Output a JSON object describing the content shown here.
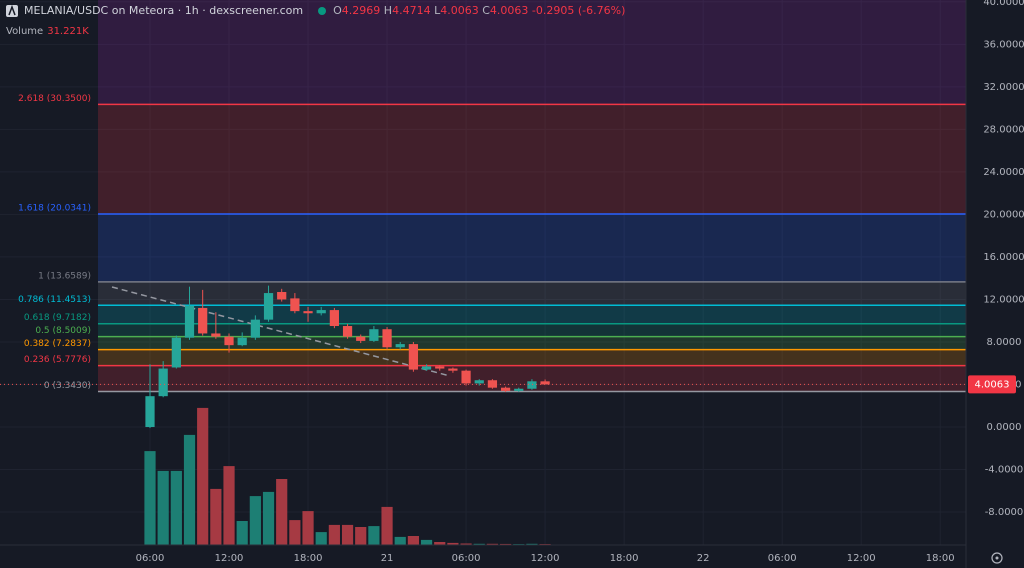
{
  "chart_data": {
    "type": "candlestick",
    "title": "MELANIA/USDC on Meteora · 1h · dexscreener.com",
    "ohlc_letters": [
      "O",
      "H",
      "L",
      "C"
    ],
    "change": -0.2905,
    "change_percent": {
      "value": -6.76,
      "label": "(-6.76%)"
    },
    "x": [
      0,
      1,
      2,
      3,
      4,
      5,
      6,
      7,
      8,
      9,
      10,
      11,
      12,
      13,
      14,
      15,
      16,
      17,
      18,
      19,
      20,
      21,
      22,
      23,
      24,
      25,
      26,
      27,
      28,
      29,
      30
    ],
    "open": [
      0,
      2.9,
      5.6,
      8.4,
      11.2,
      8.8,
      8.5,
      7.7,
      8.4,
      10.1,
      12.7,
      12.1,
      10.9,
      10.7,
      11.0,
      9.5,
      8.5,
      8.1,
      9.2,
      7.5,
      7.8,
      5.4,
      5.7,
      5.5,
      5.3,
      4.1,
      4.4,
      3.7,
      3.4,
      3.6,
      4.2969
    ],
    "high": [
      5.9,
      6.2,
      8.6,
      13.2,
      12.9,
      10.8,
      8.8,
      8.9,
      10.5,
      13.3,
      13.0,
      12.6,
      11.3,
      11.3,
      11.2,
      9.7,
      8.7,
      9.5,
      9.4,
      8.0,
      8.0,
      5.9,
      5.8,
      5.6,
      5.4,
      4.5,
      4.5,
      3.8,
      3.7,
      4.5,
      4.4714
    ],
    "low": [
      -0.1,
      2.8,
      5.5,
      8.2,
      8.6,
      8.3,
      7.0,
      7.6,
      8.2,
      9.9,
      11.8,
      10.7,
      9.9,
      10.5,
      9.3,
      8.3,
      7.9,
      8.0,
      7.3,
      7.3,
      5.2,
      5.3,
      5.3,
      5.1,
      3.9,
      3.9,
      3.6,
      3.3,
      3.3,
      3.5,
      4.0063
    ],
    "close": [
      2.9,
      5.5,
      8.4,
      11.4,
      8.8,
      8.5,
      7.7,
      8.4,
      10.1,
      12.6,
      12.0,
      10.9,
      10.7,
      11.0,
      9.5,
      8.5,
      8.1,
      9.2,
      7.5,
      7.8,
      5.4,
      5.7,
      5.5,
      5.3,
      4.1,
      4.4,
      3.7,
      3.4,
      3.6,
      4.3,
      4.0063
    ],
    "up_color": "#26a69a",
    "down_color": "#ef5350",
    "xlim": [
      -11.39,
      61.96
    ],
    "xticks": [
      {
        "value": 0,
        "label": "06:00"
      },
      {
        "value": 6,
        "label": "12:00"
      },
      {
        "value": 12,
        "label": "18:00"
      },
      {
        "value": 18,
        "label": "21"
      },
      {
        "value": 24,
        "label": "06:00"
      },
      {
        "value": 30,
        "label": "12:00"
      },
      {
        "value": 36,
        "label": "18:00"
      },
      {
        "value": 42,
        "label": "22"
      },
      {
        "value": 48,
        "label": "06:00"
      },
      {
        "value": 54,
        "label": "12:00"
      },
      {
        "value": 60,
        "label": "18:00"
      }
    ],
    "ylim": [
      -11.1,
      40.17
    ],
    "yticks": [
      {
        "value": 40,
        "label": "40.0000"
      },
      {
        "value": 36,
        "label": "36.0000"
      },
      {
        "value": 32,
        "label": "32.0000"
      },
      {
        "value": 28,
        "label": "28.0000"
      },
      {
        "value": 24,
        "label": "24.0000"
      },
      {
        "value": 20,
        "label": "20.0000"
      },
      {
        "value": 16,
        "label": "16.0000"
      },
      {
        "value": 12,
        "label": "12.0000"
      },
      {
        "value": 8,
        "label": "8.0000"
      },
      {
        "value": 4,
        "label": "4.0000"
      },
      {
        "value": 0,
        "label": "0.0000"
      },
      {
        "value": -4,
        "label": "-4.0000"
      },
      {
        "value": -8,
        "label": "-8.0000"
      }
    ],
    "fib_levels": [
      {
        "label": "0 (3.3430)",
        "value": 3.343,
        "color": "#9598a1"
      },
      {
        "label": "0.236 (5.7776)",
        "value": 5.7776,
        "color": "#f23645"
      },
      {
        "label": "0.382 (7.2837)",
        "value": 7.2837,
        "color": "#ff9800"
      },
      {
        "label": "0.5 (8.5009)",
        "value": 8.5009,
        "color": "#4caf50"
      },
      {
        "label": "0.618 (9.7182)",
        "value": 9.7182,
        "color": "#089981"
      },
      {
        "label": "0.786 (11.4513)",
        "value": 11.4513,
        "color": "#00bcd4"
      },
      {
        "label": "1 (13.6589)",
        "value": 13.6589,
        "color": "#787b86"
      },
      {
        "label": "1.618 (20.0341)",
        "value": 20.0341,
        "color": "#2962ff"
      },
      {
        "label": "2.618 (30.3500)",
        "value": 30.35,
        "color": "#f23645"
      }
    ],
    "fib_top_color": "#9c27b0",
    "volume": {
      "name": "Volume",
      "last_label": "31.221K",
      "ylim": [
        0,
        6000000
      ],
      "up_color": "#1d7f74",
      "down_color": "#a63a43",
      "values": [
        3130000,
        2470000,
        2470000,
        3670000,
        4570000,
        1870000,
        2630000,
        800000,
        1630000,
        1770000,
        2200000,
        830000,
        1130000,
        430000,
        670000,
        670000,
        600000,
        630000,
        1270000,
        270000,
        300000,
        170000,
        100000,
        70000,
        50000,
        40000,
        40000,
        35000,
        30000,
        40000,
        31221
      ]
    }
  }
}
